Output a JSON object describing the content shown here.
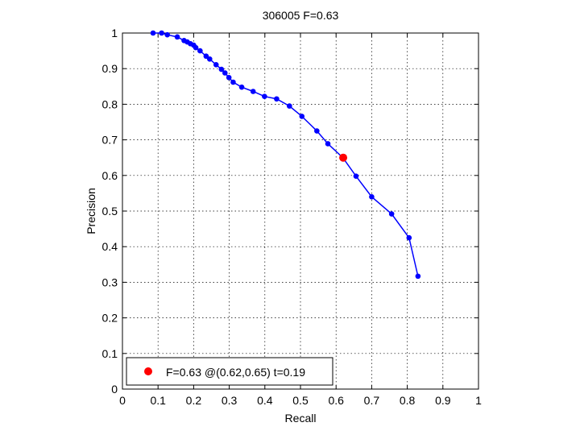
{
  "chart_data": {
    "type": "line",
    "title": "306005 F=0.63",
    "xlabel": "Recall",
    "ylabel": "Precision",
    "xlim": [
      0,
      1
    ],
    "ylim": [
      0,
      1
    ],
    "grid": true,
    "xticks": [
      "0",
      "0.1",
      "0.2",
      "0.3",
      "0.4",
      "0.5",
      "0.6",
      "0.7",
      "0.8",
      "0.9",
      "1"
    ],
    "yticks": [
      "0",
      "0.1",
      "0.2",
      "0.3",
      "0.4",
      "0.5",
      "0.6",
      "0.7",
      "0.8",
      "0.9",
      "1"
    ],
    "series": [
      {
        "color": "#0000ff",
        "points": [
          [
            0.086,
            1.0
          ],
          [
            0.11,
            1.0
          ],
          [
            0.126,
            0.995
          ],
          [
            0.154,
            0.989
          ],
          [
            0.173,
            0.979
          ],
          [
            0.182,
            0.975
          ],
          [
            0.191,
            0.97
          ],
          [
            0.2,
            0.966
          ],
          [
            0.206,
            0.959
          ],
          [
            0.218,
            0.95
          ],
          [
            0.235,
            0.935
          ],
          [
            0.245,
            0.927
          ],
          [
            0.263,
            0.911
          ],
          [
            0.278,
            0.898
          ],
          [
            0.288,
            0.888
          ],
          [
            0.299,
            0.875
          ],
          [
            0.311,
            0.862
          ],
          [
            0.335,
            0.848
          ],
          [
            0.367,
            0.836
          ],
          [
            0.399,
            0.822
          ],
          [
            0.433,
            0.815
          ],
          [
            0.469,
            0.795
          ],
          [
            0.504,
            0.766
          ],
          [
            0.546,
            0.725
          ],
          [
            0.577,
            0.689
          ],
          [
            0.619,
            0.65
          ],
          [
            0.656,
            0.598
          ],
          [
            0.7,
            0.54
          ],
          [
            0.756,
            0.492
          ],
          [
            0.805,
            0.425
          ],
          [
            0.83,
            0.317
          ]
        ]
      }
    ],
    "best_point": {
      "recall": 0.62,
      "precision": 0.65,
      "color": "#ff0000"
    },
    "legend": {
      "position": "bottom-left",
      "label": "F=0.63 @(0.62,0.65) t=0.19"
    }
  }
}
